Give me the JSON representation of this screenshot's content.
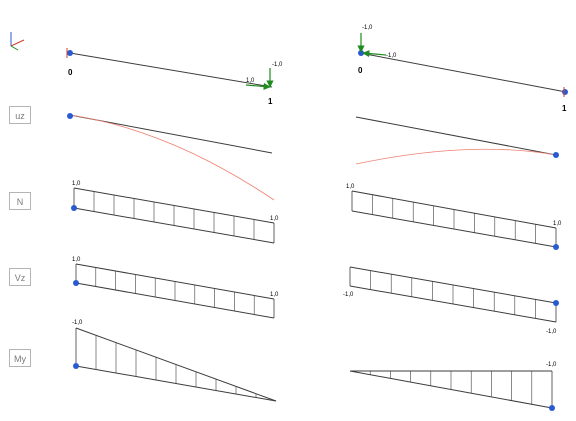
{
  "rows": [
    {
      "key": "uz",
      "label": "uz"
    },
    {
      "key": "N",
      "label": "N"
    },
    {
      "key": "Vz",
      "label": "Vz"
    },
    {
      "key": "My",
      "label": "My"
    }
  ],
  "left_case": {
    "nodes": [
      "0",
      "1"
    ],
    "loads": {
      "horizontal": "1,0",
      "vertical": "-1,0"
    },
    "N": {
      "start": "1,0",
      "end": "1,0"
    },
    "Vz": {
      "start": "1,0",
      "end": "1,0"
    },
    "My": {
      "start": "-1,0"
    }
  },
  "right_case": {
    "nodes": [
      "0",
      "1"
    ],
    "loads": {
      "vertical": "-1,0",
      "horizontal": "-1,0"
    },
    "N": {
      "start": "1,0",
      "end": "1,0"
    },
    "Vz": {
      "start": "-1,0",
      "end": "-1,0"
    },
    "My": {
      "end": "-1,0"
    }
  },
  "colors": {
    "beam": "#3c3c3c",
    "deflection": "#f08070",
    "load_arrow": "#1e8c1e",
    "support_red": "#d23c28",
    "support_blue": "#285ad2",
    "axis_x": "#d23c28",
    "axis_y": "#1e8c1e",
    "axis_z": "#285ad2"
  }
}
